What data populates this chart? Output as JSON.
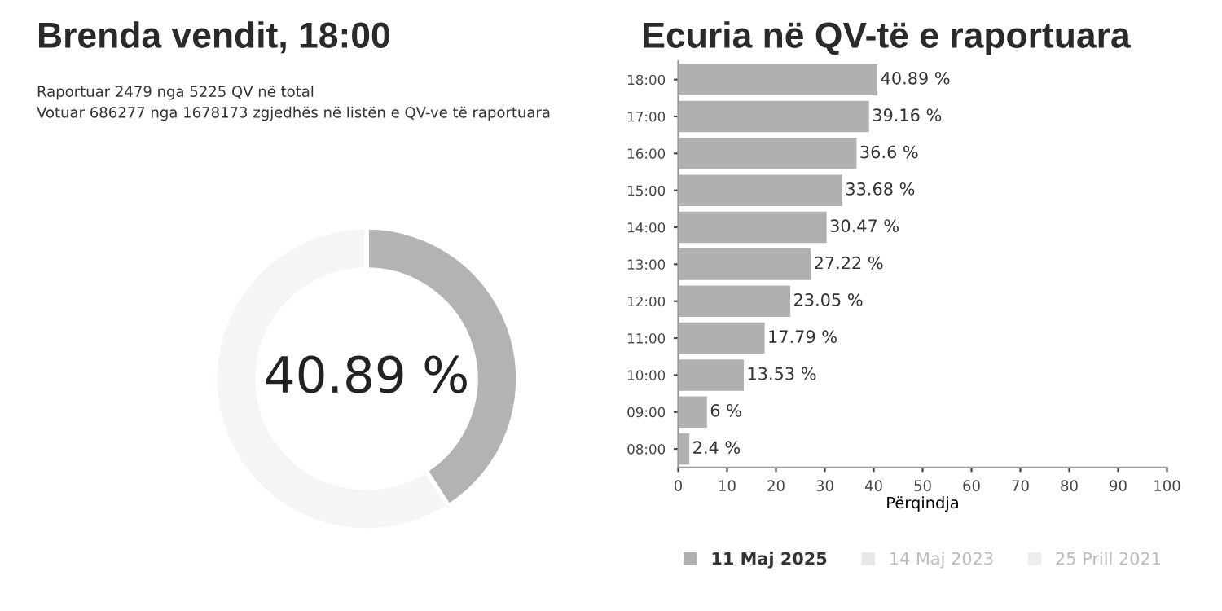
{
  "chart_data": [
    {
      "type": "donut",
      "title": "Brenda vendit, 18:00",
      "subtitle": "Raportuar 2479 nga 5225 QV në total\nVotuar 686277 nga 1678173 zgjedhës në listën e QV-ve të raportuara",
      "categories": [
        null,
        null
      ],
      "values": [
        40.89,
        59.11
      ],
      "colors": [
        "#b3b3b3",
        "#f7f4f4"
      ],
      "annotations": [
        "40.89 %"
      ]
    },
    {
      "type": "bar",
      "orientation": "horizontal",
      "title": "Ecuria në QV-të e raportuara",
      "xlabel": "Përqindja",
      "categories": [
        "18:00",
        "17:00",
        "16:00",
        "15:00",
        "14:00",
        "13:00",
        "12:00",
        "11:00",
        "10:00",
        "09:00",
        "08:00"
      ],
      "series": [
        {
          "name": "11 Maj 2025",
          "color": "#b0b0b0",
          "values": [
            40.89,
            39.16,
            36.6,
            33.68,
            30.47,
            27.22,
            23.05,
            17.79,
            13.53,
            6,
            2.4
          ],
          "value_labels": [
            "40.89 %",
            "39.16 %",
            "36.6 %",
            "33.68 %",
            "30.47 %",
            "27.22 %",
            "23.05 %",
            "17.79 %",
            "13.53 %",
            "6 %",
            "2.4 %"
          ]
        },
        {
          "name": "14 Maj 2023",
          "color": "#e8e8e8",
          "values": [
            null,
            null,
            null,
            null,
            null,
            null,
            null,
            null,
            null,
            null,
            null
          ]
        },
        {
          "name": "25 Prill 2021",
          "color": "#eeeeee",
          "values": [
            null,
            null,
            null,
            null,
            null,
            null,
            null,
            null,
            null,
            null,
            null
          ]
        }
      ],
      "xlim": [
        0,
        100
      ],
      "xticks": [
        0,
        10,
        20,
        30,
        40,
        50,
        60,
        70,
        80,
        90,
        100
      ],
      "grid": false,
      "legend": "bottom"
    }
  ]
}
